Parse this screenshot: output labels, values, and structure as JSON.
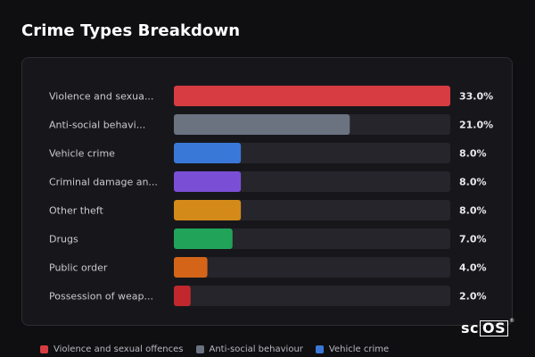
{
  "title": "Crime Types Breakdown",
  "chart_data": {
    "type": "bar",
    "orientation": "horizontal",
    "categories": [
      "Violence and sexua...",
      "Anti-social behavi...",
      "Vehicle crime",
      "Criminal damage an...",
      "Other theft",
      "Drugs",
      "Public order",
      "Possession of weap..."
    ],
    "values": [
      33.0,
      21.0,
      8.0,
      8.0,
      8.0,
      7.0,
      4.0,
      2.0
    ],
    "value_labels": [
      "33.0%",
      "21.0%",
      "8.0%",
      "8.0%",
      "8.0%",
      "7.0%",
      "4.0%",
      "2.0%"
    ],
    "colors": [
      "#d63c41",
      "#6b7280",
      "#3a78d8",
      "#7a4fd6",
      "#d48a18",
      "#21a35a",
      "#d46518",
      "#c0282e"
    ],
    "xlim": [
      0,
      33
    ],
    "grid": false,
    "legend_position": "bottom-left"
  },
  "legend": [
    {
      "label": "Violence and sexual offences",
      "color": "#d63c41"
    },
    {
      "label": "Anti-social behaviour",
      "color": "#6b7280"
    },
    {
      "label": "Vehicle crime",
      "color": "#3a78d8"
    }
  ],
  "logo": {
    "prefix": "sc",
    "boxed": "OS",
    "mark": "®"
  }
}
